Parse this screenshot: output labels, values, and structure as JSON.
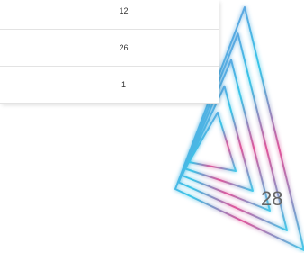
{
  "table": {
    "rows": [
      [
        "12"
      ],
      [
        "26"
      ],
      [
        "1"
      ]
    ]
  },
  "page_number": "28"
}
